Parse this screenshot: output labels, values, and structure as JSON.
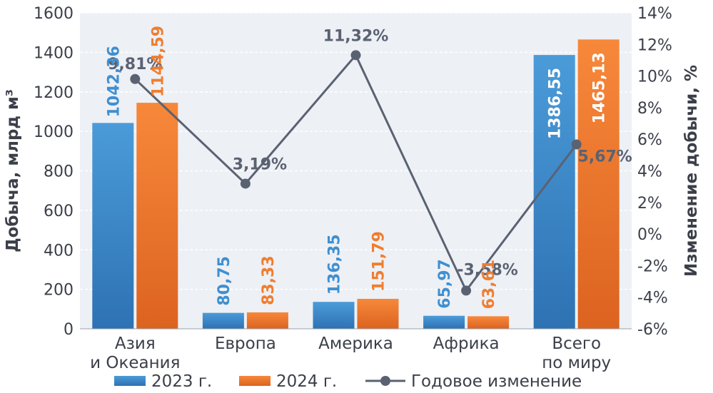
{
  "chart_data": {
    "type": "bar",
    "categories": [
      [
        "Азия",
        "и Океания"
      ],
      [
        "Европа"
      ],
      [
        "Америка"
      ],
      [
        "Африка"
      ],
      [
        "Всего",
        "по миру"
      ]
    ],
    "series": [
      {
        "name": "2023 г.",
        "type": "bar",
        "axis": "left",
        "color": "#3f8fd0",
        "values": [
          1042.36,
          80.75,
          136.35,
          65.97,
          1386.55
        ],
        "labels": [
          "1042,36",
          "80,75",
          "136,35",
          "65,97",
          "1386,55"
        ]
      },
      {
        "name": "2024 г.",
        "type": "bar",
        "axis": "left",
        "color": "#f07d2e",
        "values": [
          1144.59,
          83.33,
          151.79,
          63.61,
          1465.13
        ],
        "labels": [
          "1144,59",
          "83,33",
          "151,79",
          "63,61",
          "1465,13"
        ]
      },
      {
        "name": "Годовое изменение",
        "type": "line",
        "axis": "right",
        "color": "#5a6272",
        "values": [
          9.81,
          3.19,
          11.32,
          -3.58,
          5.67
        ],
        "labels": [
          "9,81%",
          "3,19%",
          "11,32%",
          "-3,58%",
          "5,67%"
        ]
      }
    ],
    "ylabel_left": "Добыча, млрд м³",
    "ylabel_right": "Изменение добычи, %",
    "ylim_left": [
      0,
      1600
    ],
    "ylim_right": [
      -6,
      14
    ],
    "yticks_left": [
      "0",
      "200",
      "400",
      "600",
      "800",
      "1000",
      "1200",
      "1400",
      "1600"
    ],
    "yticks_right": [
      "-6%",
      "-4%",
      "-2%",
      "0%",
      "2%",
      "4%",
      "6%",
      "8%",
      "10%",
      "12%",
      "14%"
    ],
    "grid": true,
    "legend_position": "bottom",
    "plot_background": "#edf0f5"
  }
}
